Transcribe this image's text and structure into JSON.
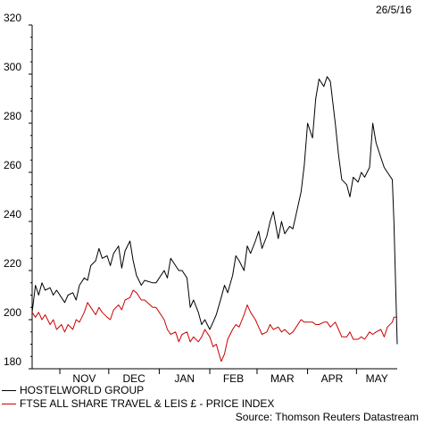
{
  "date_label": "26/5/16",
  "source": "Source: Thomson Reuters Datastream",
  "colors": {
    "series_0": "#000000",
    "series_1": "#cc0000"
  },
  "chart_data": {
    "type": "line",
    "ylim": [
      180,
      320
    ],
    "yticks": [
      180,
      200,
      220,
      240,
      260,
      280,
      300,
      320
    ],
    "x_range": [
      "2015-10-15",
      "2016-05-26"
    ],
    "x_tick_labels": [
      "NOV",
      "DEC",
      "JAN",
      "FEB",
      "MAR",
      "APR",
      "MAY"
    ],
    "month_boundaries": [
      "2015-11-01",
      "2015-12-01",
      "2016-01-01",
      "2016-02-01",
      "2016-03-01",
      "2016-04-01",
      "2016-05-01"
    ],
    "legend_position": "bottom",
    "series": [
      {
        "name": "HOSTELWORLD GROUP",
        "color": "#000000",
        "points": [
          [
            "2015-10-15",
            203
          ],
          [
            "2015-10-17",
            214
          ],
          [
            "2015-10-19",
            210
          ],
          [
            "2015-10-21",
            215
          ],
          [
            "2015-10-23",
            212
          ],
          [
            "2015-10-26",
            213
          ],
          [
            "2015-10-28",
            210
          ],
          [
            "2015-10-30",
            212
          ],
          [
            "2015-11-02",
            209
          ],
          [
            "2015-11-04",
            207
          ],
          [
            "2015-11-06",
            210
          ],
          [
            "2015-11-09",
            211
          ],
          [
            "2015-11-11",
            208
          ],
          [
            "2015-11-13",
            214
          ],
          [
            "2015-11-16",
            217
          ],
          [
            "2015-11-18",
            216
          ],
          [
            "2015-11-20",
            222
          ],
          [
            "2015-11-23",
            224
          ],
          [
            "2015-11-25",
            229
          ],
          [
            "2015-11-27",
            225
          ],
          [
            "2015-11-30",
            226
          ],
          [
            "2015-12-02",
            222
          ],
          [
            "2015-12-04",
            227
          ],
          [
            "2015-12-07",
            230
          ],
          [
            "2015-12-09",
            221
          ],
          [
            "2015-12-11",
            228
          ],
          [
            "2015-12-14",
            232
          ],
          [
            "2015-12-16",
            224
          ],
          [
            "2015-12-18",
            218
          ],
          [
            "2015-12-21",
            214
          ],
          [
            "2015-12-23",
            216
          ],
          [
            "2015-12-28",
            215
          ],
          [
            "2015-12-30",
            215
          ],
          [
            "2016-01-04",
            220
          ],
          [
            "2016-01-06",
            217
          ],
          [
            "2016-01-08",
            225
          ],
          [
            "2016-01-11",
            222
          ],
          [
            "2016-01-13",
            220
          ],
          [
            "2016-01-15",
            220
          ],
          [
            "2016-01-18",
            217
          ],
          [
            "2016-01-20",
            205
          ],
          [
            "2016-01-22",
            208
          ],
          [
            "2016-01-25",
            203
          ],
          [
            "2016-01-27",
            198
          ],
          [
            "2016-01-29",
            200
          ],
          [
            "2016-02-01",
            196
          ],
          [
            "2016-02-03",
            199
          ],
          [
            "2016-02-05",
            202
          ],
          [
            "2016-02-08",
            209
          ],
          [
            "2016-02-10",
            214
          ],
          [
            "2016-02-12",
            211
          ],
          [
            "2016-02-15",
            218
          ],
          [
            "2016-02-17",
            226
          ],
          [
            "2016-02-19",
            224
          ],
          [
            "2016-02-22",
            220
          ],
          [
            "2016-02-24",
            230
          ],
          [
            "2016-02-26",
            227
          ],
          [
            "2016-02-29",
            232
          ],
          [
            "2016-03-02",
            236
          ],
          [
            "2016-03-04",
            229
          ],
          [
            "2016-03-07",
            234
          ],
          [
            "2016-03-09",
            240
          ],
          [
            "2016-03-11",
            244
          ],
          [
            "2016-03-14",
            233
          ],
          [
            "2016-03-16",
            240
          ],
          [
            "2016-03-18",
            235
          ],
          [
            "2016-03-21",
            238
          ],
          [
            "2016-03-23",
            237
          ],
          [
            "2016-03-25",
            243
          ],
          [
            "2016-03-28",
            252
          ],
          [
            "2016-03-30",
            263
          ],
          [
            "2016-04-01",
            280
          ],
          [
            "2016-04-04",
            274
          ],
          [
            "2016-04-06",
            290
          ],
          [
            "2016-04-08",
            298
          ],
          [
            "2016-04-11",
            295
          ],
          [
            "2016-04-13",
            299
          ],
          [
            "2016-04-15",
            297
          ],
          [
            "2016-04-18",
            280
          ],
          [
            "2016-04-20",
            267
          ],
          [
            "2016-04-22",
            257
          ],
          [
            "2016-04-25",
            255
          ],
          [
            "2016-04-27",
            250
          ],
          [
            "2016-04-29",
            258
          ],
          [
            "2016-05-02",
            256
          ],
          [
            "2016-05-04",
            260
          ],
          [
            "2016-05-06",
            258
          ],
          [
            "2016-05-09",
            262
          ],
          [
            "2016-05-11",
            280
          ],
          [
            "2016-05-13",
            272
          ],
          [
            "2016-05-16",
            266
          ],
          [
            "2016-05-18",
            262
          ],
          [
            "2016-05-20",
            260
          ],
          [
            "2016-05-23",
            257
          ],
          [
            "2016-05-24",
            240
          ],
          [
            "2016-05-26",
            190
          ]
        ]
      },
      {
        "name": "FTSE ALL SHARE TRAVEL & LEIS £ - PRICE INDEX",
        "color": "#cc0000",
        "points": [
          [
            "2015-10-15",
            203
          ],
          [
            "2015-10-17",
            201
          ],
          [
            "2015-10-19",
            203
          ],
          [
            "2015-10-21",
            200
          ],
          [
            "2015-10-23",
            202
          ],
          [
            "2015-10-26",
            198
          ],
          [
            "2015-10-28",
            200
          ],
          [
            "2015-10-30",
            196
          ],
          [
            "2015-11-02",
            198
          ],
          [
            "2015-11-04",
            195
          ],
          [
            "2015-11-06",
            198
          ],
          [
            "2015-11-09",
            196
          ],
          [
            "2015-11-11",
            200
          ],
          [
            "2015-11-13",
            199
          ],
          [
            "2015-11-16",
            203
          ],
          [
            "2015-11-18",
            207
          ],
          [
            "2015-11-20",
            205
          ],
          [
            "2015-11-23",
            202
          ],
          [
            "2015-11-25",
            205
          ],
          [
            "2015-11-27",
            203
          ],
          [
            "2015-11-30",
            201
          ],
          [
            "2015-12-02",
            200
          ],
          [
            "2015-12-04",
            204
          ],
          [
            "2015-12-07",
            206
          ],
          [
            "2015-12-09",
            204
          ],
          [
            "2015-12-11",
            208
          ],
          [
            "2015-12-14",
            209
          ],
          [
            "2015-12-16",
            212
          ],
          [
            "2015-12-18",
            211
          ],
          [
            "2015-12-21",
            208
          ],
          [
            "2015-12-23",
            208
          ],
          [
            "2015-12-28",
            205
          ],
          [
            "2015-12-30",
            205
          ],
          [
            "2016-01-04",
            200
          ],
          [
            "2016-01-06",
            196
          ],
          [
            "2016-01-08",
            194
          ],
          [
            "2016-01-11",
            195
          ],
          [
            "2016-01-13",
            191
          ],
          [
            "2016-01-15",
            194
          ],
          [
            "2016-01-18",
            195
          ],
          [
            "2016-01-20",
            191
          ],
          [
            "2016-01-22",
            193
          ],
          [
            "2016-01-25",
            191
          ],
          [
            "2016-01-27",
            193
          ],
          [
            "2016-01-29",
            196
          ],
          [
            "2016-02-01",
            193
          ],
          [
            "2016-02-03",
            189
          ],
          [
            "2016-02-05",
            190
          ],
          [
            "2016-02-08",
            183
          ],
          [
            "2016-02-10",
            186
          ],
          [
            "2016-02-12",
            192
          ],
          [
            "2016-02-15",
            196
          ],
          [
            "2016-02-17",
            198
          ],
          [
            "2016-02-19",
            197
          ],
          [
            "2016-02-22",
            202
          ],
          [
            "2016-02-24",
            206
          ],
          [
            "2016-02-26",
            203
          ],
          [
            "2016-02-29",
            200
          ],
          [
            "2016-03-02",
            197
          ],
          [
            "2016-03-04",
            194
          ],
          [
            "2016-03-07",
            195
          ],
          [
            "2016-03-09",
            198
          ],
          [
            "2016-03-11",
            196
          ],
          [
            "2016-03-14",
            197
          ],
          [
            "2016-03-16",
            195
          ],
          [
            "2016-03-18",
            196
          ],
          [
            "2016-03-21",
            194
          ],
          [
            "2016-03-23",
            195
          ],
          [
            "2016-03-25",
            197
          ],
          [
            "2016-03-28",
            200
          ],
          [
            "2016-03-30",
            199
          ],
          [
            "2016-04-01",
            199
          ],
          [
            "2016-04-04",
            199
          ],
          [
            "2016-04-06",
            198
          ],
          [
            "2016-04-08",
            198
          ],
          [
            "2016-04-11",
            199
          ],
          [
            "2016-04-13",
            199
          ],
          [
            "2016-04-15",
            197
          ],
          [
            "2016-04-18",
            199
          ],
          [
            "2016-04-20",
            196
          ],
          [
            "2016-04-22",
            193
          ],
          [
            "2016-04-25",
            193
          ],
          [
            "2016-04-27",
            195
          ],
          [
            "2016-04-29",
            192
          ],
          [
            "2016-05-02",
            192
          ],
          [
            "2016-05-04",
            193
          ],
          [
            "2016-05-06",
            192
          ],
          [
            "2016-05-09",
            195
          ],
          [
            "2016-05-11",
            194
          ],
          [
            "2016-05-13",
            195
          ],
          [
            "2016-05-16",
            196
          ],
          [
            "2016-05-18",
            193
          ],
          [
            "2016-05-20",
            197
          ],
          [
            "2016-05-23",
            199
          ],
          [
            "2016-05-24",
            201
          ],
          [
            "2016-05-26",
            201
          ]
        ]
      }
    ]
  }
}
